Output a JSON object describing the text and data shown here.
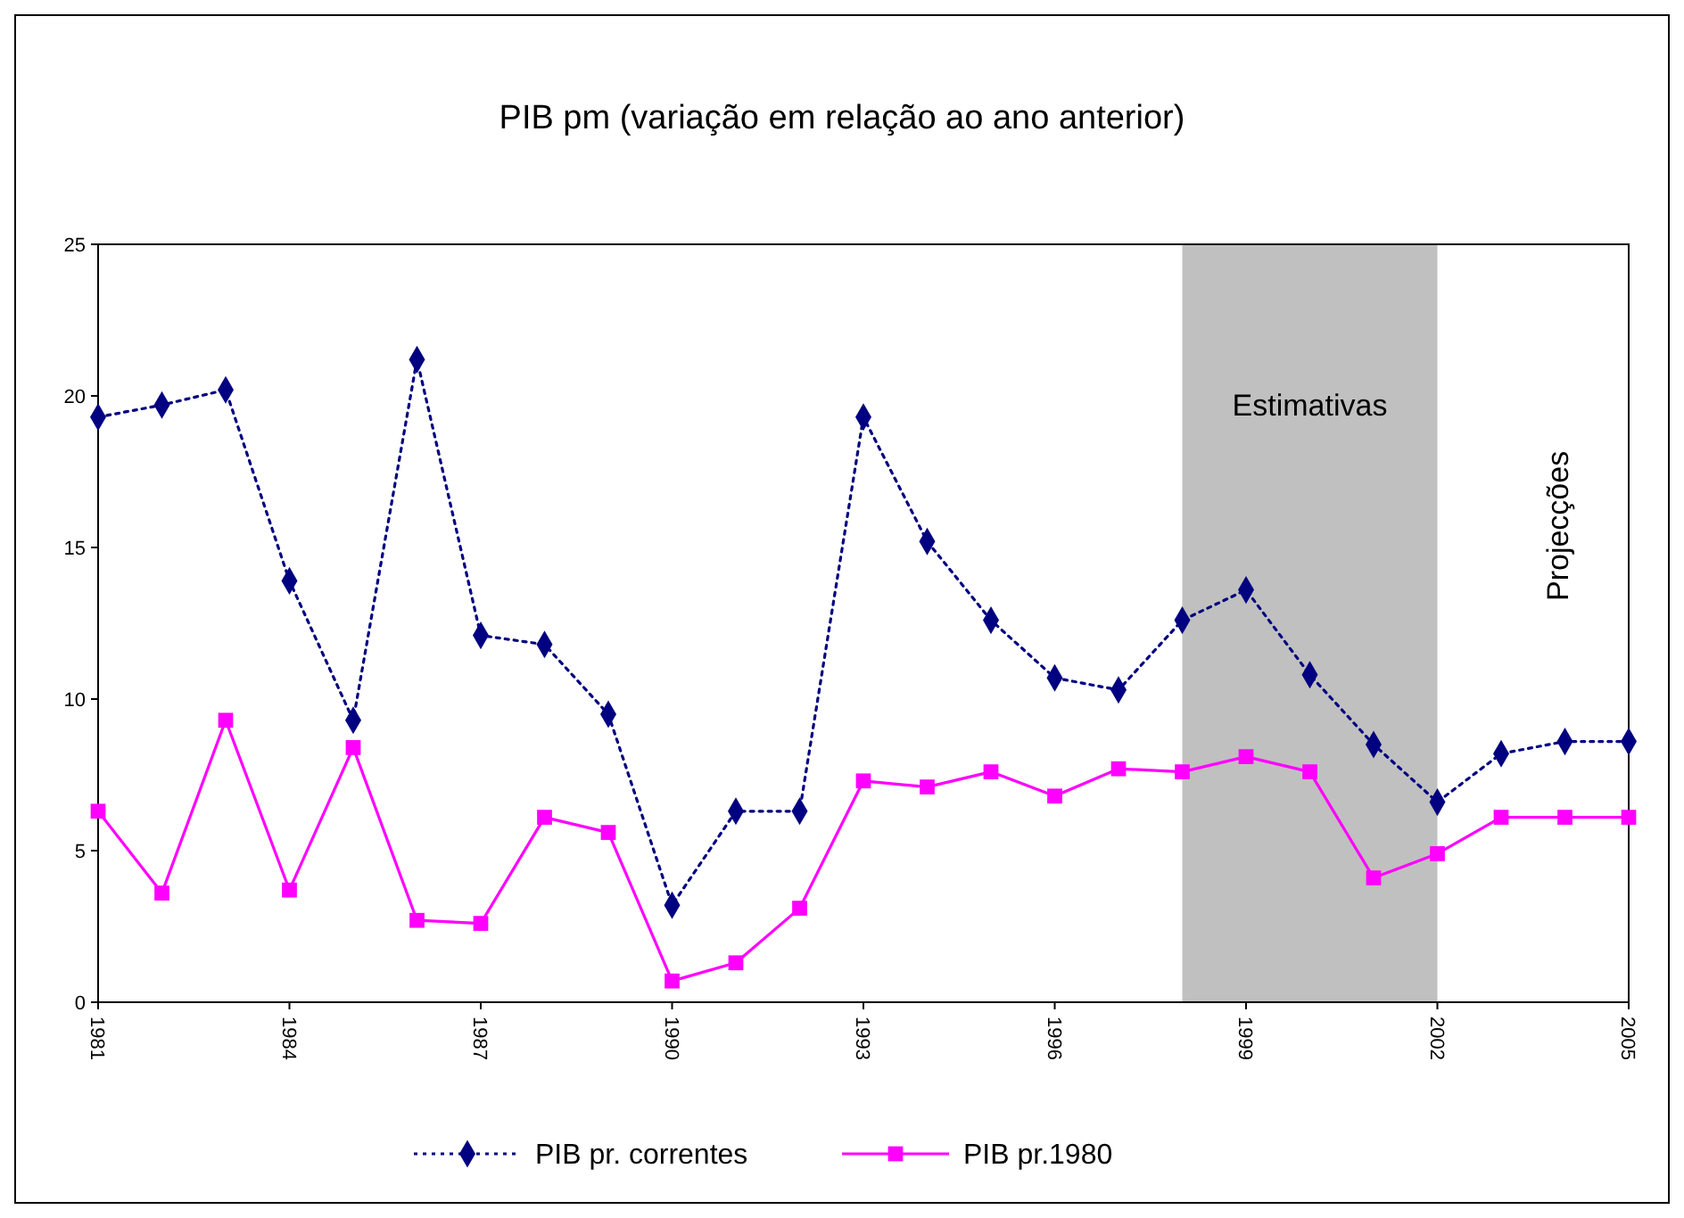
{
  "chart_data": {
    "type": "line",
    "title": "PIB pm (variação em relação ao ano anterior)",
    "x": [
      1981,
      1982,
      1983,
      1984,
      1985,
      1986,
      1987,
      1988,
      1989,
      1990,
      1991,
      1992,
      1993,
      1994,
      1995,
      1996,
      1997,
      1998,
      1999,
      2000,
      2001,
      2002,
      2003,
      2004,
      2005
    ],
    "xlim": [
      1981,
      2005
    ],
    "xticks": [
      1981,
      1984,
      1987,
      1990,
      1993,
      1996,
      1999,
      2002,
      2005
    ],
    "ylim": [
      0,
      25
    ],
    "yticks": [
      0,
      5,
      10,
      15,
      20,
      25
    ],
    "grid": false,
    "legend": "bottom",
    "series": [
      {
        "name": "PIB pr. correntes",
        "color": "#000080",
        "marker": "diamond",
        "line_style": "dotted",
        "values": [
          19.3,
          19.7,
          20.2,
          13.9,
          9.3,
          21.2,
          12.1,
          11.8,
          9.5,
          3.2,
          6.3,
          6.3,
          19.3,
          15.2,
          12.6,
          10.7,
          10.3,
          12.6,
          13.6,
          10.8,
          8.5,
          6.6,
          8.2,
          8.6,
          8.6
        ]
      },
      {
        "name": "PIB pr.1980",
        "color": "#ff00ff",
        "marker": "square",
        "line_style": "solid",
        "values": [
          6.3,
          3.6,
          9.3,
          3.7,
          8.4,
          2.7,
          2.6,
          6.1,
          5.6,
          0.7,
          1.3,
          3.1,
          7.3,
          7.1,
          7.6,
          6.8,
          7.7,
          7.6,
          8.1,
          7.6,
          4.1,
          4.9,
          6.1,
          6.1,
          6.1
        ]
      }
    ],
    "bands": [
      {
        "axis": "x",
        "from": 1998,
        "to": 2002,
        "label": "Estimativas",
        "color": "#c0c0c0"
      }
    ],
    "annotations": [
      "Projecções"
    ]
  }
}
